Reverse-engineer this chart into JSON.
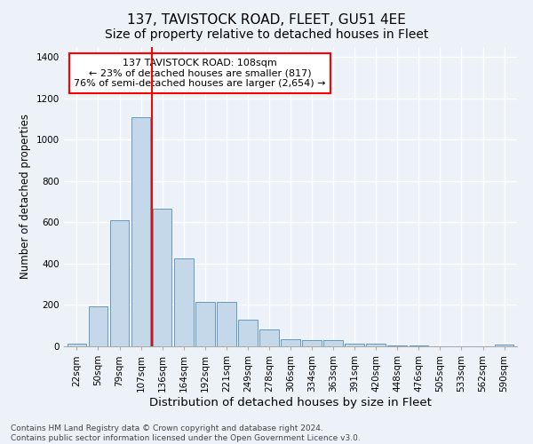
{
  "title": "137, TAVISTOCK ROAD, FLEET, GU51 4EE",
  "subtitle": "Size of property relative to detached houses in Fleet",
  "xlabel": "Distribution of detached houses by size in Fleet",
  "ylabel": "Number of detached properties",
  "bar_color": "#c5d8ea",
  "bar_edge_color": "#6899bb",
  "categories": [
    "22sqm",
    "50sqm",
    "79sqm",
    "107sqm",
    "136sqm",
    "164sqm",
    "192sqm",
    "221sqm",
    "249sqm",
    "278sqm",
    "306sqm",
    "334sqm",
    "363sqm",
    "391sqm",
    "420sqm",
    "448sqm",
    "476sqm",
    "505sqm",
    "533sqm",
    "562sqm",
    "590sqm"
  ],
  "values": [
    15,
    195,
    610,
    1110,
    665,
    425,
    215,
    215,
    130,
    80,
    33,
    28,
    28,
    15,
    12,
    4,
    4,
    2,
    1,
    1,
    8
  ],
  "ylim": [
    0,
    1450
  ],
  "yticks": [
    0,
    200,
    400,
    600,
    800,
    1000,
    1200,
    1400
  ],
  "red_line_x": 3.5,
  "annotation_text_line1": "137 TAVISTOCK ROAD: 108sqm",
  "annotation_text_line2": "← 23% of detached houses are smaller (817)",
  "annotation_text_line3": "76% of semi-detached houses are larger (2,654) →",
  "footer_line1": "Contains HM Land Registry data © Crown copyright and database right 2024.",
  "footer_line2": "Contains public sector information licensed under the Open Government Licence v3.0.",
  "background_color": "#edf2f8",
  "grid_color": "#ffffff",
  "title_fontsize": 11,
  "tick_fontsize": 7.5,
  "ylabel_fontsize": 8.5,
  "xlabel_fontsize": 9.5,
  "footer_fontsize": 6.5
}
